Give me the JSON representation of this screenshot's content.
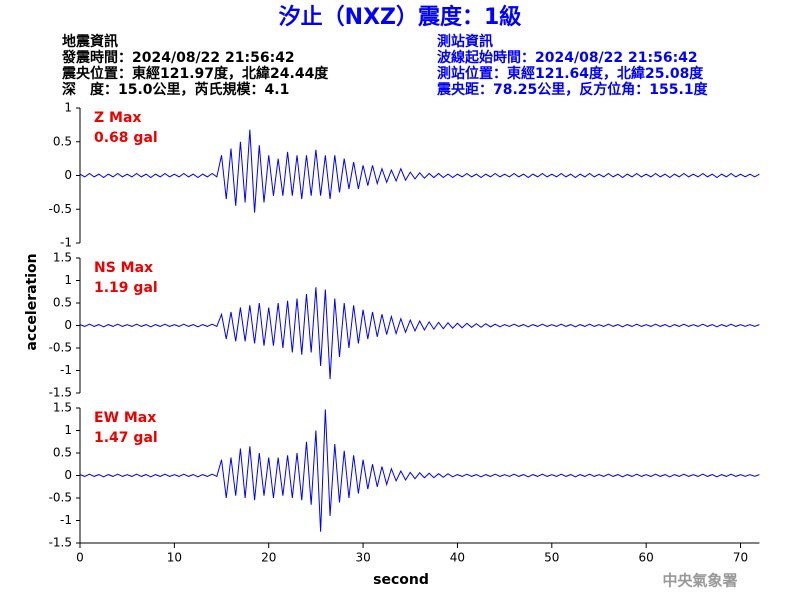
{
  "title": "汐止（NXZ）震度：1級",
  "info_left": [
    "地震資訊",
    "發震時間：2024/08/22 21:56:42",
    "震央位置：東經121.97度，北緯24.44度",
    "深　度：15.0公里，芮氏規模：4.1"
  ],
  "info_right": [
    "測站資訊",
    "波線起始時間：2024/08/22 21:56:42",
    "測站位置：東經121.64度，北緯25.08度",
    "震央距：78.25公里，反方位角：155.1度"
  ],
  "ylabel": "acceleration",
  "xlabel": "second",
  "footer": "中央氣象署",
  "chart_data": [
    {
      "type": "line",
      "annotations": [
        "Z Max",
        "0.68 gal"
      ],
      "xlim": [
        0,
        72
      ],
      "xticks": [
        0,
        10,
        20,
        30,
        40,
        50,
        60,
        70
      ],
      "ylim": [
        -1,
        1
      ],
      "yticks": [
        -1,
        -0.5,
        0,
        0.5,
        1
      ],
      "x": [
        0,
        0.5,
        1,
        1.5,
        2,
        2.5,
        3,
        3.5,
        4,
        4.5,
        5,
        5.5,
        6,
        6.5,
        7,
        7.5,
        8,
        8.5,
        9,
        9.5,
        10,
        10.5,
        11,
        11.5,
        12,
        12.5,
        13,
        13.5,
        14,
        14.5,
        15,
        15.5,
        16,
        16.5,
        17,
        17.5,
        18,
        18.5,
        19,
        19.5,
        20,
        20.5,
        21,
        21.5,
        22,
        22.5,
        23,
        23.5,
        24,
        24.5,
        25,
        25.5,
        26,
        26.5,
        27,
        27.5,
        28,
        28.5,
        29,
        29.5,
        30,
        30.5,
        31,
        31.5,
        32,
        32.5,
        33,
        33.5,
        34,
        34.5,
        35,
        35.5,
        36,
        36.5,
        37,
        37.5,
        38,
        38.5,
        39,
        39.5,
        40,
        40.5,
        41,
        41.5,
        42,
        42.5,
        43,
        43.5,
        44,
        44.5,
        45,
        45.5,
        46,
        46.5,
        47,
        47.5,
        48,
        48.5,
        49,
        49.5,
        50,
        50.5,
        51,
        51.5,
        52,
        52.5,
        53,
        53.5,
        54,
        54.5,
        55,
        55.5,
        56,
        56.5,
        57,
        57.5,
        58,
        58.5,
        59,
        59.5,
        60,
        60.5,
        61,
        61.5,
        62,
        62.5,
        63,
        63.5,
        64,
        64.5,
        65,
        65.5,
        66,
        66.5,
        67,
        67.5,
        68,
        68.5,
        69,
        69.5,
        70,
        70.5,
        71,
        71.5,
        72
      ],
      "series": [
        {
          "color": "#0000ff",
          "values": [
            0.02,
            -0.02,
            0.03,
            -0.02,
            0.02,
            -0.03,
            0.02,
            -0.02,
            0.03,
            -0.02,
            0.02,
            -0.02,
            0.03,
            -0.02,
            0.02,
            -0.03,
            0.02,
            -0.02,
            0.03,
            -0.02,
            0.02,
            -0.02,
            0.03,
            -0.02,
            0.02,
            -0.03,
            0.02,
            -0.02,
            0.03,
            -0.02,
            0.3,
            -0.35,
            0.4,
            -0.45,
            0.5,
            -0.4,
            0.68,
            -0.55,
            0.45,
            -0.4,
            0.3,
            -0.3,
            0.25,
            -0.3,
            0.35,
            -0.3,
            0.3,
            -0.35,
            0.3,
            -0.3,
            0.38,
            -0.3,
            0.3,
            -0.35,
            0.3,
            -0.25,
            0.25,
            -0.2,
            0.2,
            -0.2,
            0.15,
            -0.15,
            0.15,
            -0.12,
            0.1,
            -0.1,
            0.08,
            -0.08,
            0.1,
            -0.07,
            0.05,
            -0.05,
            0.04,
            -0.04,
            0.03,
            -0.03,
            0.03,
            -0.03,
            0.02,
            -0.03,
            0.02,
            -0.02,
            0.03,
            -0.02,
            0.02,
            -0.03,
            0.02,
            -0.02,
            0.03,
            -0.02,
            0.02,
            -0.02,
            0.03,
            -0.02,
            0.02,
            -0.03,
            0.02,
            -0.02,
            0.03,
            -0.02,
            0.02,
            -0.02,
            0.03,
            -0.02,
            0.02,
            -0.03,
            0.02,
            -0.02,
            0.03,
            -0.02,
            0.02,
            -0.02,
            0.03,
            -0.02,
            0.02,
            -0.03,
            0.02,
            -0.02,
            0.03,
            -0.02,
            0.02,
            -0.02,
            0.03,
            -0.02,
            0.02,
            -0.03,
            0.02,
            -0.02,
            0.03,
            -0.02,
            0.02,
            -0.02,
            0.03,
            -0.02,
            0.02,
            -0.03,
            0.02,
            -0.02,
            0.03,
            -0.02,
            0.02,
            -0.02,
            0.02,
            -0.02,
            0.02
          ]
        }
      ]
    },
    {
      "type": "line",
      "annotations": [
        "NS Max",
        "1.19 gal"
      ],
      "xlim": [
        0,
        72
      ],
      "xticks": [
        0,
        10,
        20,
        30,
        40,
        50,
        60,
        70
      ],
      "ylim": [
        -1.5,
        1.5
      ],
      "yticks": [
        -1.5,
        -1,
        -0.5,
        0,
        0.5,
        1,
        1.5
      ],
      "x": [
        0,
        0.5,
        1,
        1.5,
        2,
        2.5,
        3,
        3.5,
        4,
        4.5,
        5,
        5.5,
        6,
        6.5,
        7,
        7.5,
        8,
        8.5,
        9,
        9.5,
        10,
        10.5,
        11,
        11.5,
        12,
        12.5,
        13,
        13.5,
        14,
        14.5,
        15,
        15.5,
        16,
        16.5,
        17,
        17.5,
        18,
        18.5,
        19,
        19.5,
        20,
        20.5,
        21,
        21.5,
        22,
        22.5,
        23,
        23.5,
        24,
        24.5,
        25,
        25.5,
        26,
        26.5,
        27,
        27.5,
        28,
        28.5,
        29,
        29.5,
        30,
        30.5,
        31,
        31.5,
        32,
        32.5,
        33,
        33.5,
        34,
        34.5,
        35,
        35.5,
        36,
        36.5,
        37,
        37.5,
        38,
        38.5,
        39,
        39.5,
        40,
        40.5,
        41,
        41.5,
        42,
        42.5,
        43,
        43.5,
        44,
        44.5,
        45,
        45.5,
        46,
        46.5,
        47,
        47.5,
        48,
        48.5,
        49,
        49.5,
        50,
        50.5,
        51,
        51.5,
        52,
        52.5,
        53,
        53.5,
        54,
        54.5,
        55,
        55.5,
        56,
        56.5,
        57,
        57.5,
        58,
        58.5,
        59,
        59.5,
        60,
        60.5,
        61,
        61.5,
        62,
        62.5,
        63,
        63.5,
        64,
        64.5,
        65,
        65.5,
        66,
        66.5,
        67,
        67.5,
        68,
        68.5,
        69,
        69.5,
        70,
        70.5,
        71,
        71.5,
        72
      ],
      "series": [
        {
          "color": "#0000ff",
          "values": [
            0.02,
            -0.02,
            0.03,
            -0.02,
            0.02,
            -0.03,
            0.02,
            -0.02,
            0.03,
            -0.02,
            0.02,
            -0.02,
            0.03,
            -0.02,
            0.02,
            -0.03,
            0.02,
            -0.02,
            0.03,
            -0.02,
            0.02,
            -0.02,
            0.03,
            -0.02,
            0.02,
            -0.03,
            0.02,
            -0.02,
            0.03,
            -0.02,
            0.25,
            -0.3,
            0.3,
            -0.35,
            0.4,
            -0.35,
            0.45,
            -0.4,
            0.5,
            -0.45,
            0.4,
            -0.45,
            0.5,
            -0.5,
            0.55,
            -0.6,
            0.6,
            -0.65,
            0.7,
            -0.6,
            0.85,
            -0.9,
            0.8,
            -1.19,
            0.6,
            -0.7,
            0.5,
            -0.5,
            0.45,
            -0.4,
            0.35,
            -0.3,
            0.3,
            -0.25,
            0.25,
            -0.2,
            0.2,
            -0.18,
            0.15,
            -0.15,
            0.12,
            -0.12,
            0.1,
            -0.1,
            0.08,
            -0.08,
            0.07,
            -0.07,
            0.06,
            -0.06,
            0.05,
            -0.05,
            0.05,
            -0.04,
            0.04,
            -0.04,
            0.04,
            -0.03,
            0.03,
            -0.03,
            0.02,
            -0.02,
            0.03,
            -0.02,
            0.02,
            -0.03,
            0.02,
            -0.02,
            0.03,
            -0.02,
            0.02,
            -0.02,
            0.03,
            -0.02,
            0.02,
            -0.03,
            0.02,
            -0.02,
            0.03,
            -0.02,
            0.02,
            -0.02,
            0.03,
            -0.02,
            0.02,
            -0.03,
            0.02,
            -0.02,
            0.03,
            -0.02,
            0.02,
            -0.02,
            0.03,
            -0.02,
            0.02,
            -0.03,
            0.02,
            -0.02,
            0.03,
            -0.02,
            0.02,
            -0.02,
            0.03,
            -0.02,
            0.02,
            -0.03,
            0.02,
            -0.02,
            0.03,
            -0.02,
            0.02,
            -0.02,
            0.02,
            -0.02,
            0.02
          ]
        }
      ]
    },
    {
      "type": "line",
      "annotations": [
        "EW Max",
        "1.47 gal"
      ],
      "xlim": [
        0,
        72
      ],
      "xticks": [
        0,
        10,
        20,
        30,
        40,
        50,
        60,
        70
      ],
      "ylim": [
        -1.5,
        1.5
      ],
      "yticks": [
        -1.5,
        -1,
        -0.5,
        0,
        0.5,
        1,
        1.5
      ],
      "x": [
        0,
        0.5,
        1,
        1.5,
        2,
        2.5,
        3,
        3.5,
        4,
        4.5,
        5,
        5.5,
        6,
        6.5,
        7,
        7.5,
        8,
        8.5,
        9,
        9.5,
        10,
        10.5,
        11,
        11.5,
        12,
        12.5,
        13,
        13.5,
        14,
        14.5,
        15,
        15.5,
        16,
        16.5,
        17,
        17.5,
        18,
        18.5,
        19,
        19.5,
        20,
        20.5,
        21,
        21.5,
        22,
        22.5,
        23,
        23.5,
        24,
        24.5,
        25,
        25.5,
        26,
        26.5,
        27,
        27.5,
        28,
        28.5,
        29,
        29.5,
        30,
        30.5,
        31,
        31.5,
        32,
        32.5,
        33,
        33.5,
        34,
        34.5,
        35,
        35.5,
        36,
        36.5,
        37,
        37.5,
        38,
        38.5,
        39,
        39.5,
        40,
        40.5,
        41,
        41.5,
        42,
        42.5,
        43,
        43.5,
        44,
        44.5,
        45,
        45.5,
        46,
        46.5,
        47,
        47.5,
        48,
        48.5,
        49,
        49.5,
        50,
        50.5,
        51,
        51.5,
        52,
        52.5,
        53,
        53.5,
        54,
        54.5,
        55,
        55.5,
        56,
        56.5,
        57,
        57.5,
        58,
        58.5,
        59,
        59.5,
        60,
        60.5,
        61,
        61.5,
        62,
        62.5,
        63,
        63.5,
        64,
        64.5,
        65,
        65.5,
        66,
        66.5,
        67,
        67.5,
        68,
        68.5,
        69,
        69.5,
        70,
        70.5,
        71,
        71.5,
        72
      ],
      "series": [
        {
          "color": "#0000ff",
          "values": [
            0.02,
            -0.02,
            0.03,
            -0.02,
            0.02,
            -0.03,
            0.02,
            -0.02,
            0.03,
            -0.02,
            0.02,
            -0.02,
            0.03,
            -0.02,
            0.02,
            -0.03,
            0.02,
            -0.02,
            0.03,
            -0.02,
            0.02,
            -0.02,
            0.03,
            -0.02,
            0.02,
            -0.03,
            0.02,
            -0.02,
            0.03,
            -0.02,
            0.35,
            -0.5,
            0.4,
            -0.45,
            0.6,
            -0.5,
            0.65,
            -0.55,
            0.5,
            -0.45,
            0.4,
            -0.5,
            0.4,
            -0.45,
            0.45,
            -0.5,
            0.5,
            -0.55,
            0.75,
            -0.65,
            1.0,
            -1.25,
            1.47,
            -0.9,
            0.7,
            -0.6,
            0.55,
            -0.5,
            0.45,
            -0.4,
            0.35,
            -0.3,
            0.25,
            -0.25,
            0.2,
            -0.2,
            0.15,
            -0.12,
            0.1,
            -0.1,
            0.07,
            -0.07,
            0.06,
            -0.05,
            0.05,
            -0.05,
            0.04,
            -0.04,
            0.04,
            -0.03,
            0.02,
            -0.02,
            0.03,
            -0.02,
            0.02,
            -0.03,
            0.02,
            -0.02,
            0.03,
            -0.02,
            0.02,
            -0.02,
            0.03,
            -0.02,
            0.02,
            -0.03,
            0.02,
            -0.02,
            0.03,
            -0.02,
            0.02,
            -0.02,
            0.03,
            -0.02,
            0.02,
            -0.03,
            0.02,
            -0.02,
            0.03,
            -0.02,
            0.02,
            -0.02,
            0.03,
            -0.02,
            0.02,
            -0.03,
            0.02,
            -0.02,
            0.03,
            -0.02,
            0.02,
            -0.02,
            0.03,
            -0.02,
            0.02,
            -0.03,
            0.02,
            -0.02,
            0.03,
            -0.02,
            0.02,
            -0.02,
            0.03,
            -0.02,
            0.02,
            -0.03,
            0.02,
            -0.02,
            0.03,
            -0.02,
            0.02,
            -0.02,
            0.02,
            -0.02,
            0.02
          ]
        }
      ]
    }
  ]
}
